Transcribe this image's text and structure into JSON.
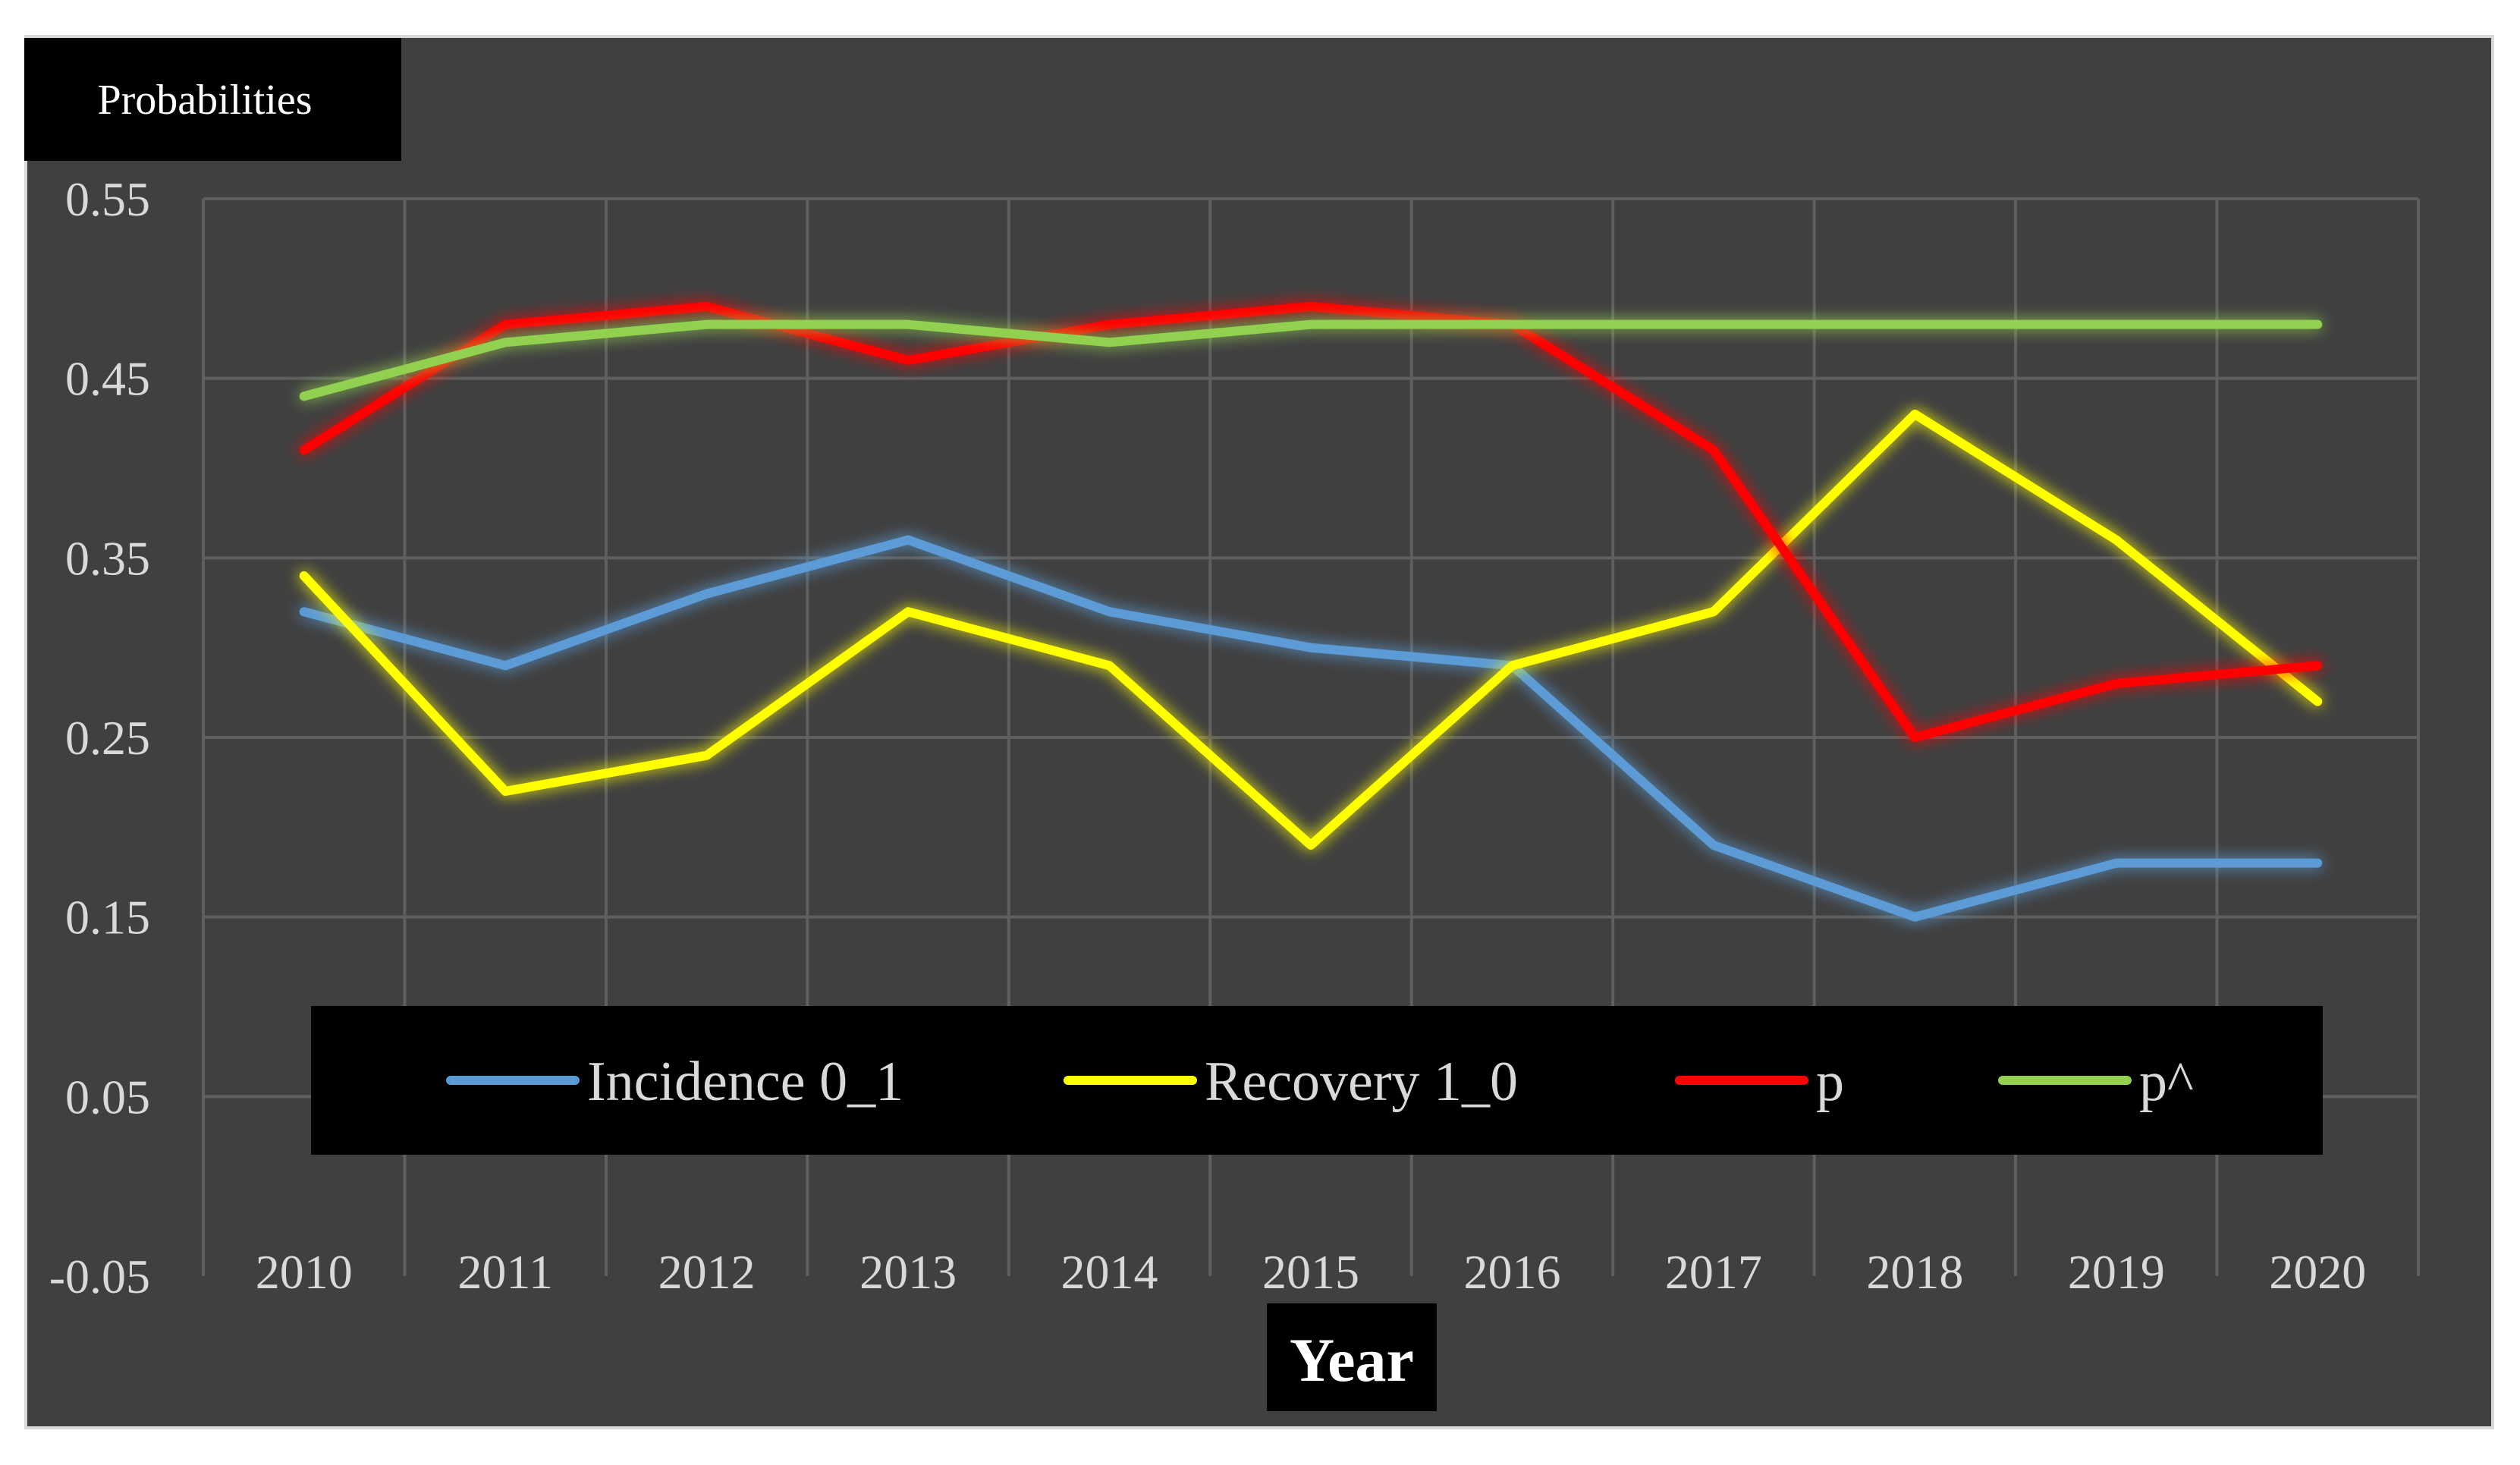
{
  "chart_data": {
    "type": "line",
    "title": "",
    "xlabel": "Year",
    "ylabel": "Probabilities",
    "categories": [
      "2010",
      "2011",
      "2012",
      "2013",
      "2014",
      "2015",
      "2016",
      "2017",
      "2018",
      "2019",
      "2020"
    ],
    "yticks": [
      "0.55",
      "0.45",
      "0.35",
      "0.25",
      "0.15",
      "0.05",
      "-0.05"
    ],
    "ylim": [
      -0.05,
      0.55
    ],
    "grid": true,
    "legend_position": "bottom-inside",
    "series": [
      {
        "name": "Incidence 0_1",
        "color": "#5b9bd5",
        "values": [
          0.32,
          0.29,
          0.33,
          0.36,
          0.32,
          0.3,
          0.29,
          0.19,
          0.15,
          0.18,
          0.18
        ]
      },
      {
        "name": "Recovery 1_0",
        "color": "#ffff00",
        "values": [
          0.34,
          0.22,
          0.24,
          0.32,
          0.29,
          0.19,
          0.29,
          0.32,
          0.43,
          0.36,
          0.27
        ]
      },
      {
        "name": "p",
        "color": "#ff0000",
        "values": [
          0.41,
          0.48,
          0.49,
          0.46,
          0.48,
          0.49,
          0.48,
          0.41,
          0.25,
          0.28,
          0.29
        ]
      },
      {
        "name": "p^",
        "color": "#92d050",
        "values": [
          0.44,
          0.47,
          0.48,
          0.48,
          0.47,
          0.48,
          0.48,
          0.48,
          0.48,
          0.48,
          0.48
        ]
      }
    ]
  }
}
